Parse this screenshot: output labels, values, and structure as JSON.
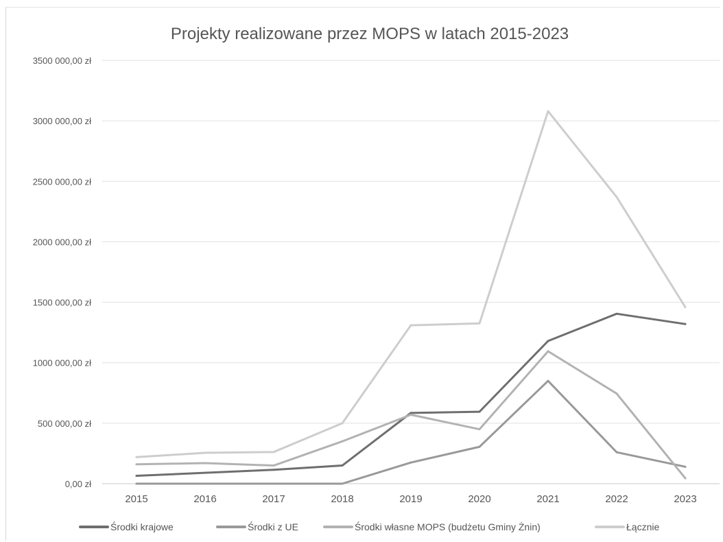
{
  "chart_data": {
    "type": "line",
    "title": "Projekty realizowane przez MOPS w latach 2015-2023",
    "xlabel": "",
    "ylabel": "",
    "categories": [
      "2015",
      "2016",
      "2017",
      "2018",
      "2019",
      "2020",
      "2021",
      "2022",
      "2023"
    ],
    "ylim": [
      0,
      3500000
    ],
    "yticks": [
      {
        "value": 0,
        "label": "0,00 zł"
      },
      {
        "value": 500000,
        "label": "500 000,00 zł"
      },
      {
        "value": 1000000,
        "label": "1000 000,00 zł"
      },
      {
        "value": 1500000,
        "label": "1500 000,00 zł"
      },
      {
        "value": 2000000,
        "label": "2000 000,00 zł"
      },
      {
        "value": 2500000,
        "label": "2500 000,00 zł"
      },
      {
        "value": 3000000,
        "label": "3000 000,00 zł"
      },
      {
        "value": 3500000,
        "label": "3500 000,00 zł"
      }
    ],
    "grid": true,
    "legend_position": "bottom",
    "series": [
      {
        "name": "Środki krajowe",
        "color": "#6e6e6e",
        "values": [
          65000,
          90000,
          115000,
          150000,
          585000,
          595000,
          1180000,
          1405000,
          1320000
        ]
      },
      {
        "name": "Środki z UE",
        "color": "#999999",
        "values": [
          0,
          0,
          0,
          0,
          175000,
          305000,
          850000,
          260000,
          140000
        ]
      },
      {
        "name": "Środki własne MOPS (budżetu Gminy Żnin)",
        "color": "#b2b2b2",
        "values": [
          160000,
          170000,
          150000,
          350000,
          570000,
          450000,
          1095000,
          745000,
          45000
        ]
      },
      {
        "name": "Łącznie",
        "color": "#cdcdcd",
        "values": [
          220000,
          255000,
          262000,
          500000,
          1310000,
          1325000,
          3080000,
          2370000,
          1460000
        ]
      }
    ]
  }
}
